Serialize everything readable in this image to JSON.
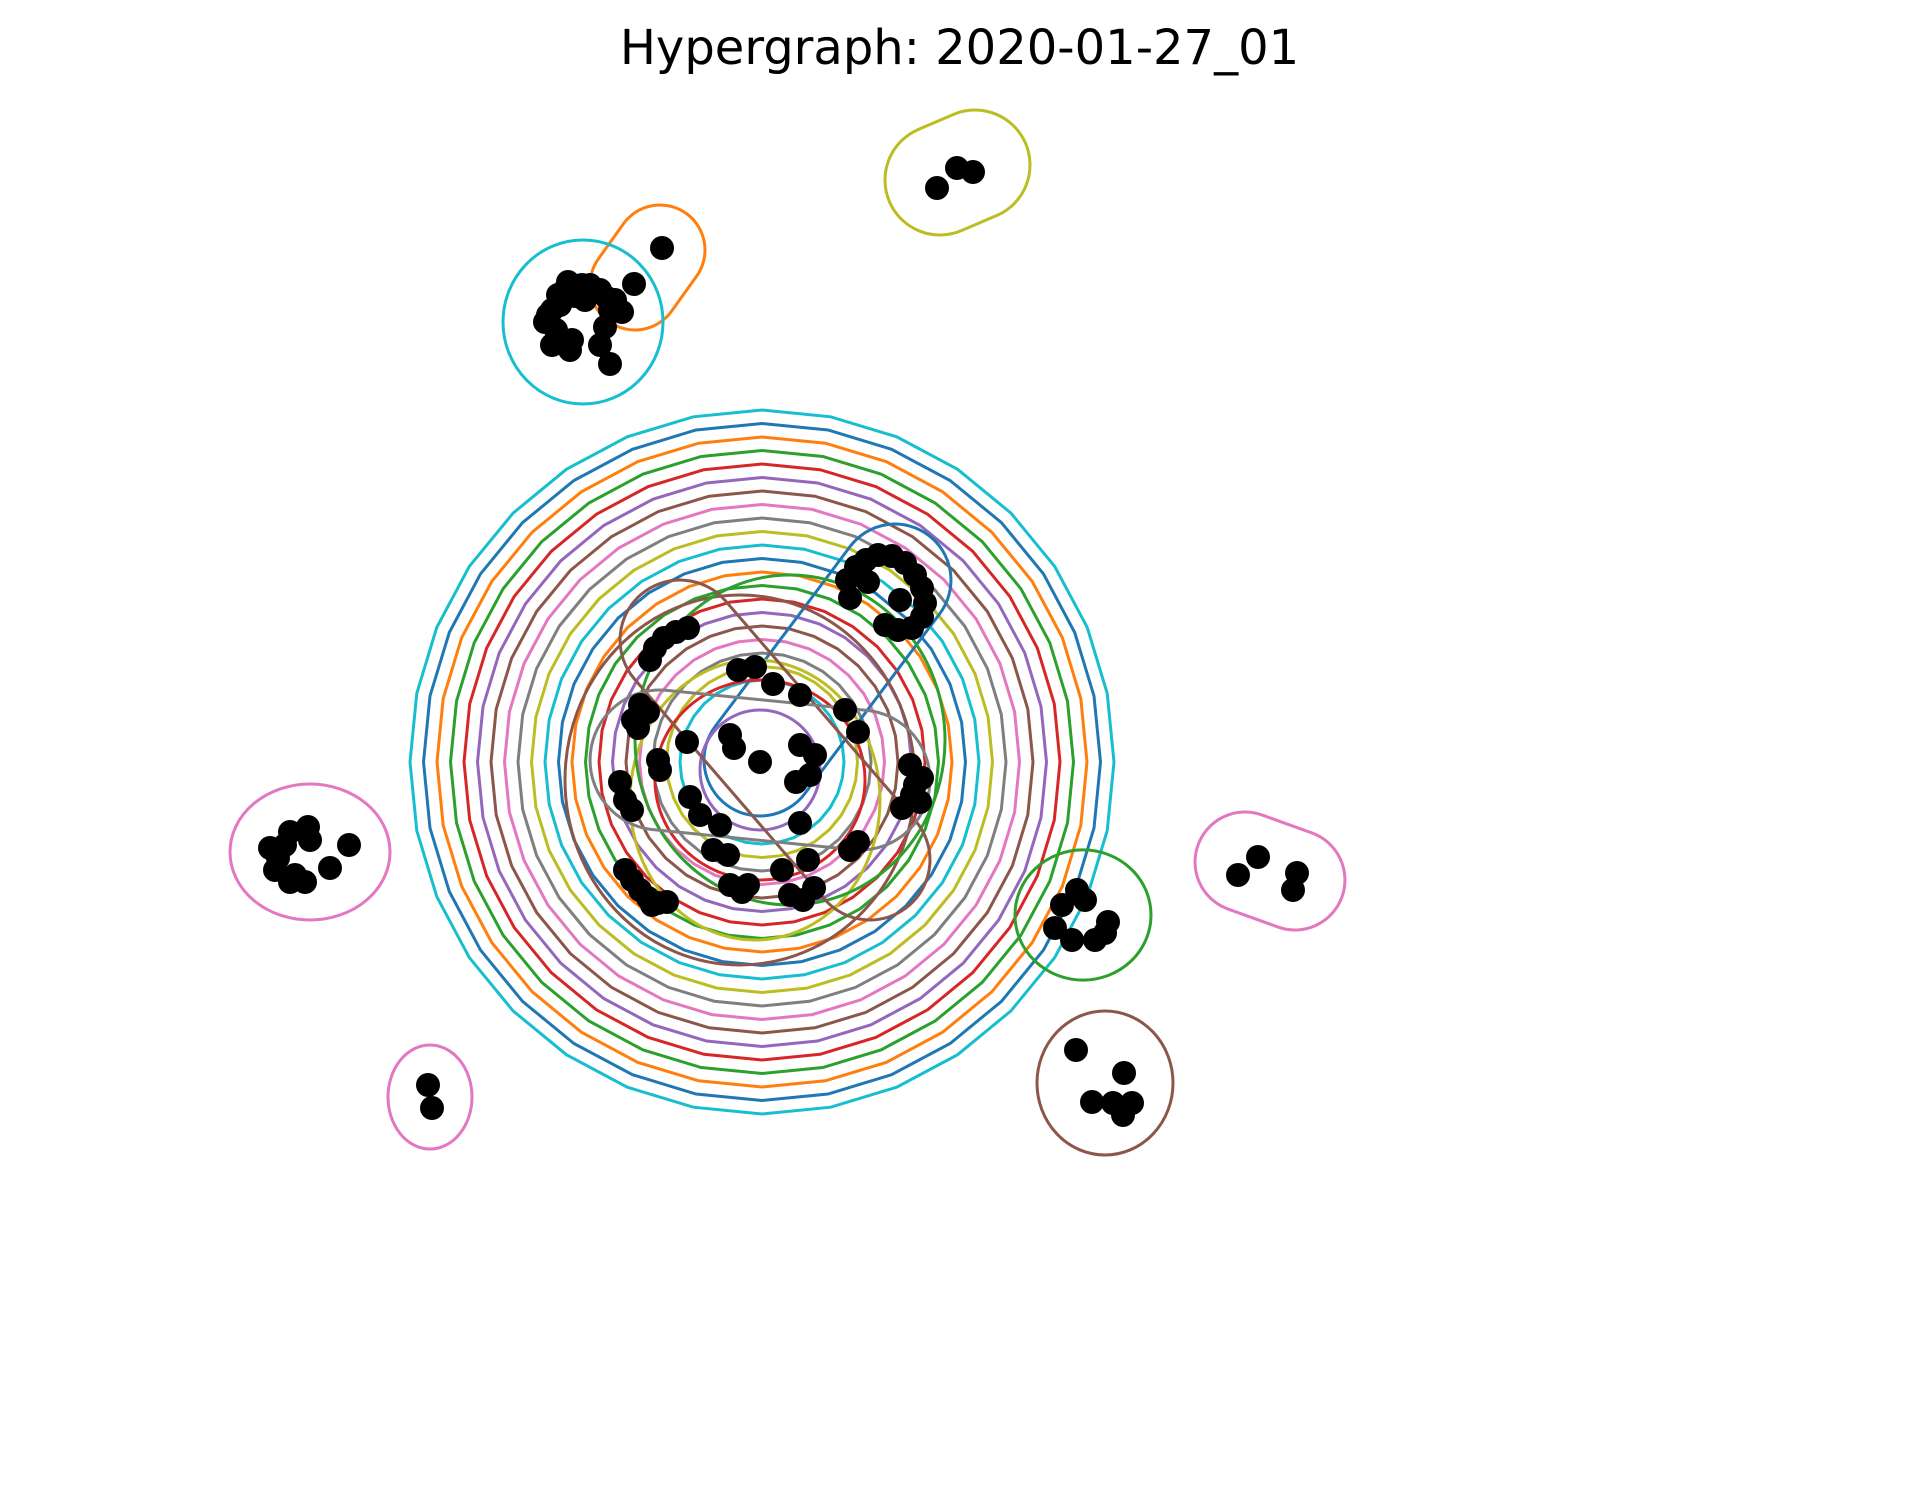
{
  "title": "Hypergraph: 2020-01-27_01",
  "node_color": "#000000",
  "palette": [
    "#1f77b4",
    "#ff7f0e",
    "#2ca02c",
    "#d62728",
    "#9467bd",
    "#8c564b",
    "#e377c2",
    "#7f7f7f",
    "#bcbd22",
    "#17becf"
  ],
  "concentric_edge_count": 21,
  "central_node_count": 58,
  "outer_component_node_counts": [
    3,
    3,
    24,
    12,
    3,
    9,
    2,
    6
  ]
}
